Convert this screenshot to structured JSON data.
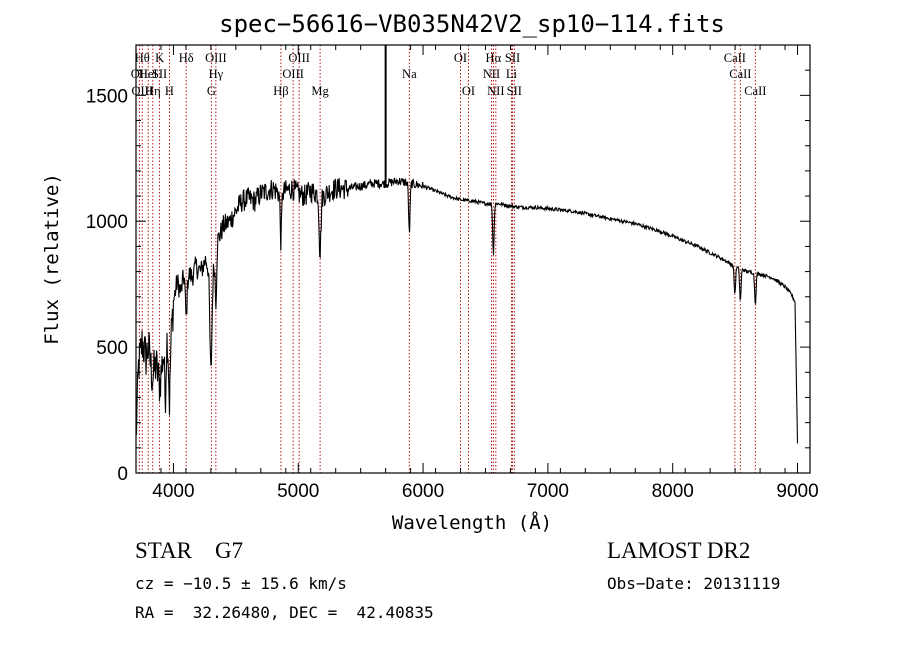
{
  "chart_data": {
    "type": "line",
    "title": "spec−56616−VB035N42V2_sp10−114.fits",
    "xlabel": "Wavelength (Å)",
    "ylabel": "Flux (relative)",
    "xlim": [
      3700,
      9100
    ],
    "ylim": [
      0,
      1700
    ],
    "x_ticks": [
      4000,
      5000,
      6000,
      7000,
      8000,
      9000
    ],
    "y_ticks": [
      0,
      500,
      1000,
      1500
    ],
    "series_color": "#000000",
    "line_marker_color": "#aa0000",
    "continuum": [
      [
        3700,
        130
      ],
      [
        3720,
        420
      ],
      [
        3750,
        520
      ],
      [
        3780,
        460
      ],
      [
        3800,
        500
      ],
      [
        3830,
        380
      ],
      [
        3860,
        430
      ],
      [
        3890,
        350
      ],
      [
        3920,
        480
      ],
      [
        3950,
        540
      ],
      [
        3970,
        450
      ],
      [
        3990,
        600
      ],
      [
        4000,
        680
      ],
      [
        4030,
        760
      ],
      [
        4060,
        720
      ],
      [
        4090,
        800
      ],
      [
        4120,
        790
      ],
      [
        4150,
        780
      ],
      [
        4180,
        820
      ],
      [
        4220,
        800
      ],
      [
        4260,
        850
      ],
      [
        4300,
        780
      ],
      [
        4320,
        820
      ],
      [
        4350,
        920
      ],
      [
        4400,
        980
      ],
      [
        4450,
        1000
      ],
      [
        4500,
        1040
      ],
      [
        4550,
        1080
      ],
      [
        4600,
        1090
      ],
      [
        4650,
        1080
      ],
      [
        4700,
        1110
      ],
      [
        4750,
        1120
      ],
      [
        4800,
        1130
      ],
      [
        4850,
        1110
      ],
      [
        4900,
        1120
      ],
      [
        4950,
        1130
      ],
      [
        5000,
        1110
      ],
      [
        5050,
        1100
      ],
      [
        5100,
        1120
      ],
      [
        5150,
        1110
      ],
      [
        5200,
        1100
      ],
      [
        5250,
        1120
      ],
      [
        5300,
        1130
      ],
      [
        5400,
        1130
      ],
      [
        5500,
        1140
      ],
      [
        5600,
        1150
      ],
      [
        5700,
        1150
      ],
      [
        5800,
        1160
      ],
      [
        5900,
        1150
      ],
      [
        6000,
        1140
      ],
      [
        6100,
        1120
      ],
      [
        6200,
        1100
      ],
      [
        6300,
        1085
      ],
      [
        6400,
        1080
      ],
      [
        6500,
        1070
      ],
      [
        6600,
        1070
      ],
      [
        6700,
        1060
      ],
      [
        6800,
        1055
      ],
      [
        6900,
        1055
      ],
      [
        7000,
        1050
      ],
      [
        7100,
        1045
      ],
      [
        7200,
        1040
      ],
      [
        7300,
        1030
      ],
      [
        7400,
        1020
      ],
      [
        7500,
        1010
      ],
      [
        7600,
        1000
      ],
      [
        7700,
        990
      ],
      [
        7800,
        975
      ],
      [
        7900,
        960
      ],
      [
        8000,
        940
      ],
      [
        8100,
        920
      ],
      [
        8200,
        900
      ],
      [
        8300,
        875
      ],
      [
        8400,
        850
      ],
      [
        8500,
        820
      ],
      [
        8600,
        800
      ],
      [
        8700,
        790
      ],
      [
        8800,
        775
      ],
      [
        8900,
        740
      ],
      [
        8950,
        710
      ],
      [
        8980,
        680
      ],
      [
        9000,
        120
      ]
    ],
    "absorption_features": [
      {
        "x": 3934,
        "depth": 200,
        "width": 8
      },
      {
        "x": 3968,
        "depth": 180,
        "width": 8
      },
      {
        "x": 4102,
        "depth": 180,
        "width": 10
      },
      {
        "x": 4300,
        "depth": 380,
        "width": 12
      },
      {
        "x": 4340,
        "depth": 200,
        "width": 8
      },
      {
        "x": 4861,
        "depth": 190,
        "width": 8
      },
      {
        "x": 5175,
        "depth": 230,
        "width": 10
      },
      {
        "x": 5890,
        "depth": 200,
        "width": 8
      },
      {
        "x": 6563,
        "depth": 200,
        "width": 8
      },
      {
        "x": 8498,
        "depth": 110,
        "width": 8
      },
      {
        "x": 8542,
        "depth": 130,
        "width": 8
      },
      {
        "x": 8662,
        "depth": 120,
        "width": 8
      }
    ],
    "spikes": [
      {
        "x": 5700,
        "y": 1700
      }
    ],
    "spectral_lines": [
      {
        "wave": 3727,
        "labels": [
          "OII"
        ],
        "row": 1
      },
      {
        "wave": 3750,
        "labels": [
          "Hθ"
        ],
        "row": 0
      },
      {
        "wave": 3750,
        "labels": [
          "OIII"
        ],
        "row": 2
      },
      {
        "wave": 3798,
        "labels": [
          "HeI"
        ],
        "row": 1
      },
      {
        "wave": 3835,
        "labels": [
          "Hη"
        ],
        "row": 2
      },
      {
        "wave": 3889,
        "labels": [
          "K"
        ],
        "row": 0
      },
      {
        "wave": 3889,
        "labels": [
          "SII"
        ],
        "row": 1
      },
      {
        "wave": 3968,
        "labels": [
          "H"
        ],
        "row": 2
      },
      {
        "wave": 4102,
        "labels": [
          "Hδ"
        ],
        "row": 0
      },
      {
        "wave": 4340,
        "labels": [
          "OIII"
        ],
        "row": 0
      },
      {
        "wave": 4340,
        "labels": [
          "Hγ"
        ],
        "row": 1
      },
      {
        "wave": 4304,
        "labels": [
          "G"
        ],
        "row": 2
      },
      {
        "wave": 4861,
        "labels": [
          "Hβ"
        ],
        "row": 2
      },
      {
        "wave": 4959,
        "labels": [
          "OIII"
        ],
        "row": 1
      },
      {
        "wave": 5007,
        "labels": [
          "OIII"
        ],
        "row": 0
      },
      {
        "wave": 5175,
        "labels": [
          "Mg"
        ],
        "row": 2
      },
      {
        "wave": 5890,
        "labels": [
          "Na"
        ],
        "row": 1
      },
      {
        "wave": 6300,
        "labels": [
          "OI"
        ],
        "row": 0
      },
      {
        "wave": 6364,
        "labels": [
          "OI"
        ],
        "row": 2
      },
      {
        "wave": 6548,
        "labels": [
          "NII"
        ],
        "row": 1
      },
      {
        "wave": 6563,
        "labels": [
          "Hα"
        ],
        "row": 0
      },
      {
        "wave": 6583,
        "labels": [
          "NII"
        ],
        "row": 2
      },
      {
        "wave": 6708,
        "labels": [
          "Li"
        ],
        "row": 1
      },
      {
        "wave": 6717,
        "labels": [
          "SII"
        ],
        "row": 0
      },
      {
        "wave": 6731,
        "labels": [
          "SII"
        ],
        "row": 2
      },
      {
        "wave": 8498,
        "labels": [
          "CaII"
        ],
        "row": 0
      },
      {
        "wave": 8542,
        "labels": [
          "CaII"
        ],
        "row": 1
      },
      {
        "wave": 8662,
        "labels": [
          "CaII"
        ],
        "row": 2
      }
    ]
  },
  "info": {
    "class_label": "STAR    G7",
    "survey_label": "LAMOST DR2",
    "redshift_text": "cz = −10.5 ± 15.6 km/s",
    "obs_date_text": "Obs−Date: 20131119",
    "coords_text": "RA =  32.26480, DEC =  42.40835"
  }
}
